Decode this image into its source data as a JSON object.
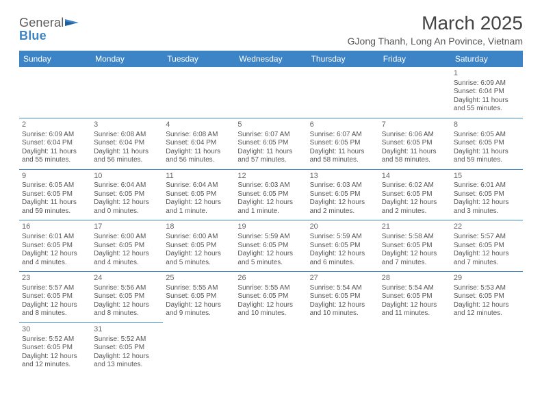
{
  "brand": {
    "textA": "General",
    "textB": "Blue"
  },
  "title": "March 2025",
  "location": "GJong Thanh, Long An Povince, Vietnam",
  "colors": {
    "header_bg": "#3d84c6",
    "header_text": "#ffffff",
    "rule": "#3d84c6",
    "text": "#555555",
    "title_text": "#444444"
  },
  "daysOfWeek": [
    "Sunday",
    "Monday",
    "Tuesday",
    "Wednesday",
    "Thursday",
    "Friday",
    "Saturday"
  ],
  "weeks": [
    [
      null,
      null,
      null,
      null,
      null,
      null,
      {
        "n": "1",
        "sr": "Sunrise: 6:09 AM",
        "ss": "Sunset: 6:04 PM",
        "dl": "Daylight: 11 hours and 55 minutes."
      }
    ],
    [
      {
        "n": "2",
        "sr": "Sunrise: 6:09 AM",
        "ss": "Sunset: 6:04 PM",
        "dl": "Daylight: 11 hours and 55 minutes."
      },
      {
        "n": "3",
        "sr": "Sunrise: 6:08 AM",
        "ss": "Sunset: 6:04 PM",
        "dl": "Daylight: 11 hours and 56 minutes."
      },
      {
        "n": "4",
        "sr": "Sunrise: 6:08 AM",
        "ss": "Sunset: 6:04 PM",
        "dl": "Daylight: 11 hours and 56 minutes."
      },
      {
        "n": "5",
        "sr": "Sunrise: 6:07 AM",
        "ss": "Sunset: 6:05 PM",
        "dl": "Daylight: 11 hours and 57 minutes."
      },
      {
        "n": "6",
        "sr": "Sunrise: 6:07 AM",
        "ss": "Sunset: 6:05 PM",
        "dl": "Daylight: 11 hours and 58 minutes."
      },
      {
        "n": "7",
        "sr": "Sunrise: 6:06 AM",
        "ss": "Sunset: 6:05 PM",
        "dl": "Daylight: 11 hours and 58 minutes."
      },
      {
        "n": "8",
        "sr": "Sunrise: 6:05 AM",
        "ss": "Sunset: 6:05 PM",
        "dl": "Daylight: 11 hours and 59 minutes."
      }
    ],
    [
      {
        "n": "9",
        "sr": "Sunrise: 6:05 AM",
        "ss": "Sunset: 6:05 PM",
        "dl": "Daylight: 11 hours and 59 minutes."
      },
      {
        "n": "10",
        "sr": "Sunrise: 6:04 AM",
        "ss": "Sunset: 6:05 PM",
        "dl": "Daylight: 12 hours and 0 minutes."
      },
      {
        "n": "11",
        "sr": "Sunrise: 6:04 AM",
        "ss": "Sunset: 6:05 PM",
        "dl": "Daylight: 12 hours and 1 minute."
      },
      {
        "n": "12",
        "sr": "Sunrise: 6:03 AM",
        "ss": "Sunset: 6:05 PM",
        "dl": "Daylight: 12 hours and 1 minute."
      },
      {
        "n": "13",
        "sr": "Sunrise: 6:03 AM",
        "ss": "Sunset: 6:05 PM",
        "dl": "Daylight: 12 hours and 2 minutes."
      },
      {
        "n": "14",
        "sr": "Sunrise: 6:02 AM",
        "ss": "Sunset: 6:05 PM",
        "dl": "Daylight: 12 hours and 2 minutes."
      },
      {
        "n": "15",
        "sr": "Sunrise: 6:01 AM",
        "ss": "Sunset: 6:05 PM",
        "dl": "Daylight: 12 hours and 3 minutes."
      }
    ],
    [
      {
        "n": "16",
        "sr": "Sunrise: 6:01 AM",
        "ss": "Sunset: 6:05 PM",
        "dl": "Daylight: 12 hours and 4 minutes."
      },
      {
        "n": "17",
        "sr": "Sunrise: 6:00 AM",
        "ss": "Sunset: 6:05 PM",
        "dl": "Daylight: 12 hours and 4 minutes."
      },
      {
        "n": "18",
        "sr": "Sunrise: 6:00 AM",
        "ss": "Sunset: 6:05 PM",
        "dl": "Daylight: 12 hours and 5 minutes."
      },
      {
        "n": "19",
        "sr": "Sunrise: 5:59 AM",
        "ss": "Sunset: 6:05 PM",
        "dl": "Daylight: 12 hours and 5 minutes."
      },
      {
        "n": "20",
        "sr": "Sunrise: 5:59 AM",
        "ss": "Sunset: 6:05 PM",
        "dl": "Daylight: 12 hours and 6 minutes."
      },
      {
        "n": "21",
        "sr": "Sunrise: 5:58 AM",
        "ss": "Sunset: 6:05 PM",
        "dl": "Daylight: 12 hours and 7 minutes."
      },
      {
        "n": "22",
        "sr": "Sunrise: 5:57 AM",
        "ss": "Sunset: 6:05 PM",
        "dl": "Daylight: 12 hours and 7 minutes."
      }
    ],
    [
      {
        "n": "23",
        "sr": "Sunrise: 5:57 AM",
        "ss": "Sunset: 6:05 PM",
        "dl": "Daylight: 12 hours and 8 minutes."
      },
      {
        "n": "24",
        "sr": "Sunrise: 5:56 AM",
        "ss": "Sunset: 6:05 PM",
        "dl": "Daylight: 12 hours and 8 minutes."
      },
      {
        "n": "25",
        "sr": "Sunrise: 5:55 AM",
        "ss": "Sunset: 6:05 PM",
        "dl": "Daylight: 12 hours and 9 minutes."
      },
      {
        "n": "26",
        "sr": "Sunrise: 5:55 AM",
        "ss": "Sunset: 6:05 PM",
        "dl": "Daylight: 12 hours and 10 minutes."
      },
      {
        "n": "27",
        "sr": "Sunrise: 5:54 AM",
        "ss": "Sunset: 6:05 PM",
        "dl": "Daylight: 12 hours and 10 minutes."
      },
      {
        "n": "28",
        "sr": "Sunrise: 5:54 AM",
        "ss": "Sunset: 6:05 PM",
        "dl": "Daylight: 12 hours and 11 minutes."
      },
      {
        "n": "29",
        "sr": "Sunrise: 5:53 AM",
        "ss": "Sunset: 6:05 PM",
        "dl": "Daylight: 12 hours and 12 minutes."
      }
    ],
    [
      {
        "n": "30",
        "sr": "Sunrise: 5:52 AM",
        "ss": "Sunset: 6:05 PM",
        "dl": "Daylight: 12 hours and 12 minutes."
      },
      {
        "n": "31",
        "sr": "Sunrise: 5:52 AM",
        "ss": "Sunset: 6:05 PM",
        "dl": "Daylight: 12 hours and 13 minutes."
      },
      null,
      null,
      null,
      null,
      null
    ]
  ]
}
